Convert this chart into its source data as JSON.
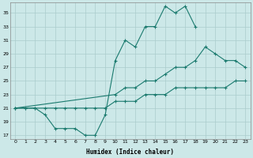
{
  "xlabel": "Humidex (Indice chaleur)",
  "bg_color": "#cce8e8",
  "line_color": "#1a7a6e",
  "grid_color": "#aacccc",
  "xlim": [
    -0.5,
    23.5
  ],
  "ylim": [
    16.5,
    36.5
  ],
  "yticks": [
    17,
    19,
    21,
    23,
    25,
    27,
    29,
    31,
    33,
    35
  ],
  "xticks": [
    0,
    1,
    2,
    3,
    4,
    5,
    6,
    7,
    8,
    9,
    10,
    11,
    12,
    13,
    14,
    15,
    16,
    17,
    18,
    19,
    20,
    21,
    22,
    23
  ],
  "line1_x": [
    0,
    1,
    2,
    3,
    4,
    5,
    6,
    7,
    8,
    9,
    10,
    11,
    12,
    13,
    14,
    15,
    16,
    17,
    18
  ],
  "line1_y": [
    21,
    21,
    21,
    20,
    18,
    18,
    18,
    17,
    17,
    20,
    28,
    31,
    30,
    33,
    33,
    36,
    35,
    36,
    33
  ],
  "line2_x": [
    0,
    10,
    11,
    12,
    13,
    14,
    15,
    16,
    17,
    18,
    19,
    20,
    21,
    22,
    23
  ],
  "line2_y": [
    21,
    23,
    24,
    24,
    25,
    25,
    26,
    27,
    27,
    28,
    30,
    29,
    28,
    28,
    27
  ],
  "line3_x": [
    0,
    1,
    2,
    3,
    4,
    5,
    6,
    7,
    8,
    9,
    10,
    11,
    12,
    13,
    14,
    15,
    16,
    17,
    18,
    19,
    20,
    21,
    22,
    23
  ],
  "line3_y": [
    21,
    21,
    21,
    21,
    21,
    21,
    21,
    21,
    21,
    21,
    22,
    22,
    22,
    23,
    23,
    23,
    24,
    24,
    24,
    24,
    24,
    24,
    25,
    25
  ]
}
